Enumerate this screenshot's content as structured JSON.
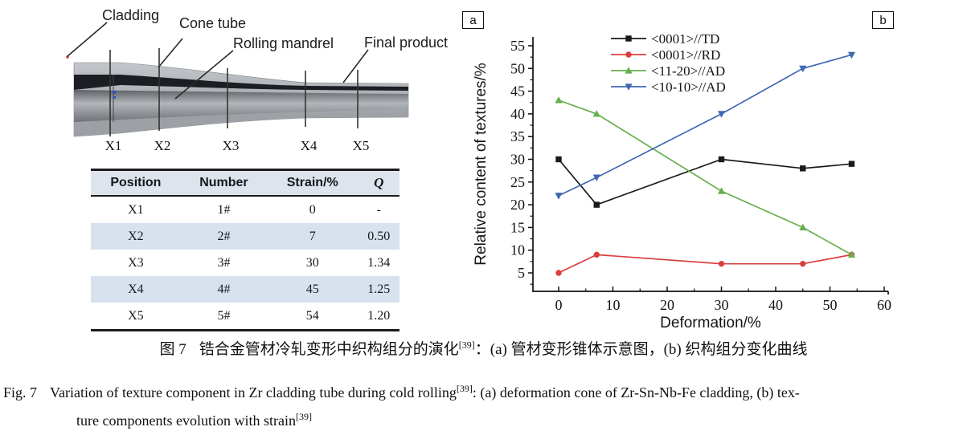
{
  "panel_a": {
    "label": "a",
    "label_cladding": "Cladding",
    "label_cone_tube": "Cone tube",
    "label_rolling_mandrel": "Rolling mandrel",
    "label_final_product": "Final product",
    "position_labels": [
      "X1",
      "X2",
      "X3",
      "X4",
      "X5"
    ],
    "table": {
      "headers": [
        "Position",
        "Number",
        "Strain/%",
        "Q"
      ],
      "rows": [
        [
          "X1",
          "1#",
          "0",
          "-"
        ],
        [
          "X2",
          "2#",
          "7",
          "0.50"
        ],
        [
          "X3",
          "3#",
          "30",
          "1.34"
        ],
        [
          "X4",
          "4#",
          "45",
          "1.25"
        ],
        [
          "X5",
          "5#",
          "54",
          "1.20"
        ]
      ]
    }
  },
  "panel_b": {
    "label": "b"
  },
  "chart_data": {
    "type": "line",
    "x": [
      0,
      7,
      30,
      45,
      54
    ],
    "series": [
      {
        "name": "<0001>//TD",
        "marker": "square",
        "color": "#1a1a1a",
        "values": [
          30,
          20,
          30,
          28,
          29
        ]
      },
      {
        "name": "<0001>//RD",
        "marker": "circle",
        "color": "#d93f3f",
        "values": [
          5,
          9,
          7,
          7,
          9
        ]
      },
      {
        "name": "<11-20>//AD",
        "marker": "triangle-up",
        "color": "#66b04e",
        "values": [
          43,
          40,
          23,
          15,
          9
        ]
      },
      {
        "name": "<10-10>//AD",
        "marker": "triangle-down",
        "color": "#3f68b3",
        "values": [
          22,
          26,
          40,
          50,
          53
        ]
      }
    ],
    "xlabel": "Deformation/%",
    "ylabel": "Relative content of textures/%",
    "xticks": [
      0,
      10,
      20,
      30,
      40,
      50,
      60
    ],
    "yticks": [
      5,
      10,
      15,
      20,
      25,
      30,
      35,
      40,
      45,
      50,
      55
    ],
    "xlim": [
      -5,
      61
    ],
    "ylim": [
      1,
      57
    ],
    "grid": false,
    "legend_position": "top-center-inside"
  },
  "caption": {
    "zh": {
      "fig": "图 7",
      "text": "锆合金管材冷轧变形中织构组分的演化",
      "ref": "[39]",
      "rest": "：(a) 管材变形锥体示意图，(b) 织构组分变化曲线"
    },
    "en": {
      "fig": "Fig. 7",
      "part1": "Variation of texture component in Zr cladding tube during cold rolling",
      "ref1": "[39]",
      "part2": ": (a) deformation cone of Zr-Sn-Nb-Fe cladding, (b) tex-",
      "line2": "ture components evolution with strain",
      "ref2": "[39]"
    }
  }
}
